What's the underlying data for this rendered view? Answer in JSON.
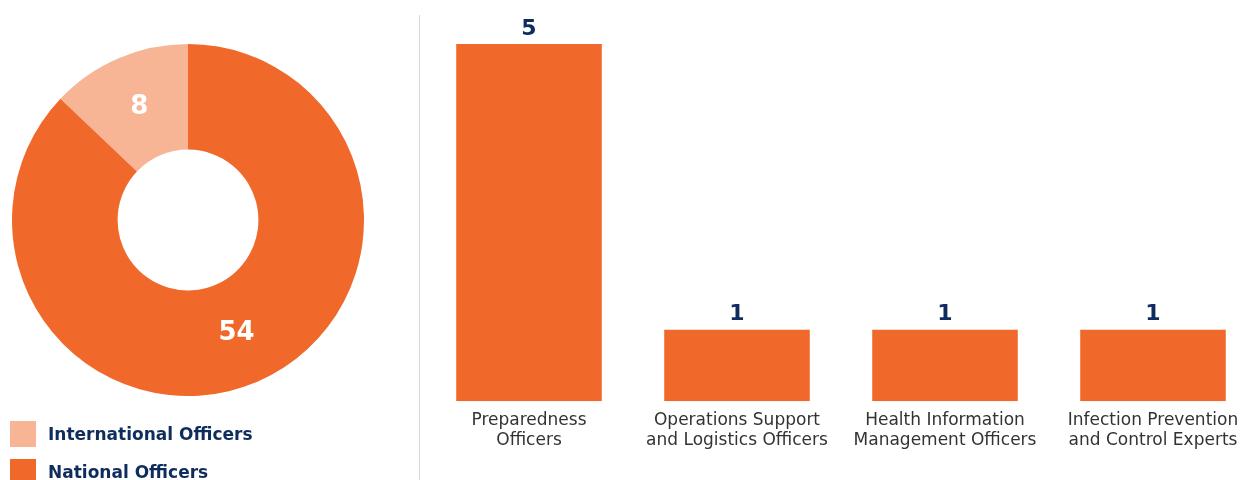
{
  "chart_data": [
    {
      "type": "donut",
      "categories": [
        "International Officers",
        "National Officers"
      ],
      "values": [
        8,
        54
      ],
      "colors": [
        "#f7b596",
        "#f0692b"
      ],
      "data_labels": true,
      "legend": "bottom"
    },
    {
      "type": "bar",
      "categories": [
        "Preparedness Officers",
        "Operations Support and Logistics Officers",
        "Health Information Management Officers",
        "Infection Prevention and Control Experts"
      ],
      "values": [
        5,
        1,
        1,
        1
      ],
      "color": "#f0692b",
      "data_labels": true,
      "grid": false
    }
  ]
}
